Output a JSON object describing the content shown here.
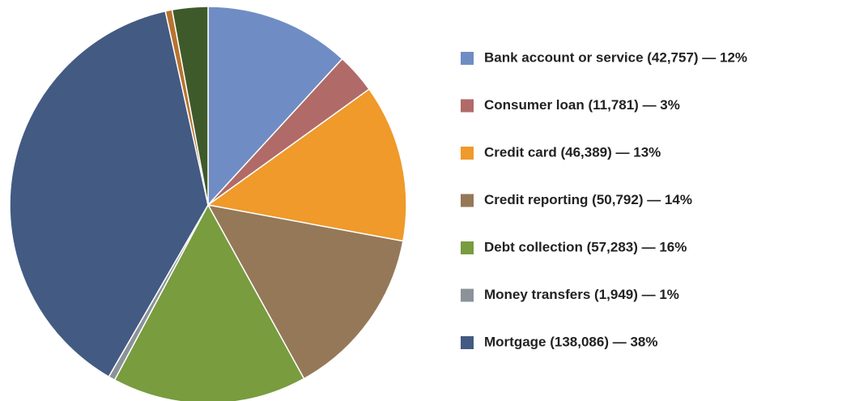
{
  "chart_data": {
    "type": "pie",
    "categories": [
      "Bank account or service (42,757) — 12%",
      "Consumer loan (11,781) — 3%",
      "Credit card (46,389) — 13%",
      "Credit reporting (50,792) — 14%",
      "Debt collection (57,283) — 16%",
      "Money transfers (1,949) — 1%",
      "Mortgage (138,086) — 38%",
      null,
      null
    ],
    "values": [
      42757,
      11781,
      46389,
      50792,
      57283,
      1949,
      138086,
      2000,
      10500
    ],
    "colors": [
      "#6f8dc4",
      "#b06a68",
      "#ef9a2a",
      "#957858",
      "#789c3e",
      "#8b9399",
      "#435a82",
      "#b8732e",
      "#3f5a2a"
    ],
    "legend": "right"
  }
}
